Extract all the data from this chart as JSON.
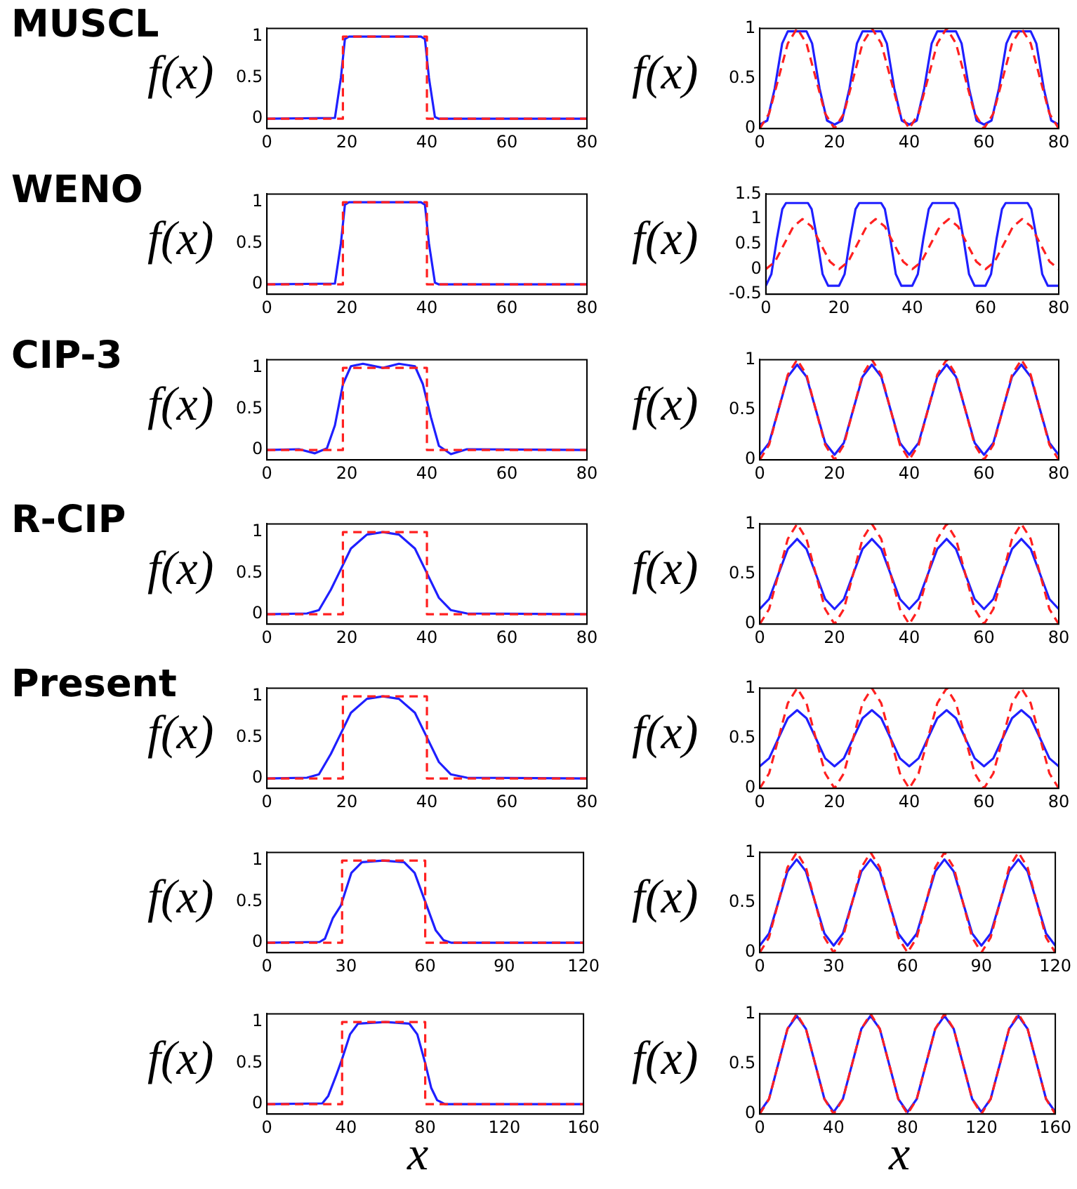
{
  "chart_data": [
    {
      "type": "line",
      "title": "MUSCL",
      "ylabel": "f(x)",
      "xlim": [
        0,
        80
      ],
      "xticks": [
        0,
        20,
        40,
        60,
        80
      ],
      "ylim": [
        -0.12,
        1.1
      ],
      "yticks": [
        0,
        0.5,
        1
      ],
      "series": [
        {
          "color": "#1f1fff",
          "line_style": "solid",
          "x": [
            0,
            17,
            18.5,
            19.5,
            20.5,
            38.5,
            39.5,
            40.5,
            42,
            43,
            80
          ],
          "values": [
            0,
            0.01,
            0.5,
            0.97,
            1,
            1,
            0.97,
            0.5,
            0.02,
            0,
            0
          ]
        },
        {
          "color": "#ff2020",
          "line_style": "dashed",
          "x": [
            0,
            19,
            19,
            40,
            40,
            80
          ],
          "values": [
            0,
            0,
            1,
            1,
            0,
            0
          ]
        }
      ]
    },
    {
      "type": "line",
      "ylabel": "f(x)",
      "xlim": [
        0,
        80
      ],
      "xticks": [
        0,
        20,
        40,
        60,
        80
      ],
      "ylim": [
        0,
        1
      ],
      "yticks": [
        0,
        0.5,
        1
      ],
      "series": [
        {
          "color": "#1f1fff",
          "line_style": "solid",
          "x": [
            0,
            2,
            4,
            6,
            7.5,
            12.5,
            14,
            16,
            18,
            20,
            22,
            24,
            26,
            27.5,
            32.5,
            34,
            36,
            38,
            40,
            42,
            44,
            46,
            47.5,
            52.5,
            54,
            56,
            58,
            60,
            62,
            64,
            66,
            67.5,
            72.5,
            74,
            76,
            78,
            80
          ],
          "values": [
            0.04,
            0.08,
            0.4,
            0.85,
            0.97,
            0.97,
            0.85,
            0.4,
            0.08,
            0.04,
            0.08,
            0.4,
            0.85,
            0.97,
            0.97,
            0.85,
            0.4,
            0.08,
            0.04,
            0.08,
            0.4,
            0.85,
            0.97,
            0.97,
            0.85,
            0.4,
            0.08,
            0.04,
            0.08,
            0.4,
            0.85,
            0.97,
            0.97,
            0.85,
            0.4,
            0.08,
            0.04
          ]
        },
        {
          "color": "#ff2020",
          "line_style": "dashed",
          "x": [
            0,
            2.5,
            5,
            7.5,
            10,
            12.5,
            15,
            17.5,
            20,
            22.5,
            25,
            27.5,
            30,
            32.5,
            35,
            37.5,
            40,
            42.5,
            45,
            47.5,
            50,
            52.5,
            55,
            57.5,
            60,
            62.5,
            65,
            67.5,
            70,
            72.5,
            75,
            77.5,
            80
          ],
          "values": [
            0,
            0.15,
            0.5,
            0.85,
            1,
            0.85,
            0.5,
            0.15,
            0,
            0.15,
            0.5,
            0.85,
            1,
            0.85,
            0.5,
            0.15,
            0,
            0.15,
            0.5,
            0.85,
            1,
            0.85,
            0.5,
            0.15,
            0,
            0.15,
            0.5,
            0.85,
            1,
            0.85,
            0.5,
            0.15,
            0
          ]
        }
      ]
    },
    {
      "type": "line",
      "title": "WENO",
      "ylabel": "f(x)",
      "xlim": [
        0,
        80
      ],
      "xticks": [
        0,
        20,
        40,
        60,
        80
      ],
      "ylim": [
        -0.12,
        1.1
      ],
      "yticks": [
        0,
        0.5,
        1
      ],
      "series": [
        {
          "color": "#1f1fff",
          "line_style": "solid",
          "x": [
            0,
            17,
            18.5,
            19.5,
            20.5,
            38.5,
            39.5,
            40.5,
            42,
            43,
            80
          ],
          "values": [
            0,
            0.01,
            0.5,
            0.97,
            1,
            1,
            0.97,
            0.5,
            0.02,
            0,
            0
          ]
        },
        {
          "color": "#ff2020",
          "line_style": "dashed",
          "x": [
            0,
            19,
            19,
            40,
            40,
            80
          ],
          "values": [
            0,
            0,
            1,
            1,
            0,
            0
          ]
        }
      ]
    },
    {
      "type": "line",
      "ylabel": "f(x)",
      "xlim": [
        0,
        80
      ],
      "xticks": [
        0,
        20,
        40,
        60,
        80
      ],
      "ylim": [
        -0.5,
        1.5
      ],
      "yticks": [
        -0.5,
        0,
        0.5,
        1,
        1.5
      ],
      "series": [
        {
          "color": "#1f1fff",
          "line_style": "solid",
          "x": [
            0,
            1.5,
            3,
            4.5,
            5.5,
            11.5,
            12.5,
            14,
            15.5,
            17,
            20,
            21.5,
            23,
            24.5,
            25.5,
            31.5,
            32.5,
            34,
            35.5,
            37,
            40,
            41.5,
            43,
            44.5,
            45.5,
            51.5,
            52.5,
            54,
            55.5,
            57,
            60,
            61.5,
            63,
            64.5,
            65.5,
            71.5,
            72.5,
            74,
            75.5,
            77,
            80
          ],
          "values": [
            -0.33,
            -0.1,
            0.6,
            1.2,
            1.32,
            1.32,
            1.2,
            0.6,
            -0.1,
            -0.33,
            -0.33,
            -0.1,
            0.6,
            1.2,
            1.32,
            1.32,
            1.2,
            0.6,
            -0.1,
            -0.33,
            -0.33,
            -0.1,
            0.6,
            1.2,
            1.32,
            1.32,
            1.2,
            0.6,
            -0.1,
            -0.33,
            -0.33,
            -0.1,
            0.6,
            1.2,
            1.32,
            1.32,
            1.2,
            0.6,
            -0.1,
            -0.33,
            -0.33
          ]
        },
        {
          "color": "#ff2020",
          "line_style": "dashed",
          "x": [
            0,
            2.5,
            5,
            7.5,
            10,
            12.5,
            15,
            17.5,
            20,
            22.5,
            25,
            27.5,
            30,
            32.5,
            35,
            37.5,
            40,
            42.5,
            45,
            47.5,
            50,
            52.5,
            55,
            57.5,
            60,
            62.5,
            65,
            67.5,
            70,
            72.5,
            75,
            77.5,
            80
          ],
          "values": [
            0,
            0.15,
            0.5,
            0.85,
            1,
            0.85,
            0.5,
            0.15,
            0,
            0.15,
            0.5,
            0.85,
            1,
            0.85,
            0.5,
            0.15,
            0,
            0.15,
            0.5,
            0.85,
            1,
            0.85,
            0.5,
            0.15,
            0,
            0.15,
            0.5,
            0.85,
            1,
            0.85,
            0.5,
            0.15,
            0
          ]
        }
      ]
    },
    {
      "type": "line",
      "title": "CIP-3",
      "ylabel": "f(x)",
      "xlim": [
        0,
        80
      ],
      "xticks": [
        0,
        20,
        40,
        60,
        80
      ],
      "ylim": [
        -0.12,
        1.1
      ],
      "yticks": [
        0,
        0.5,
        1
      ],
      "series": [
        {
          "color": "#1f1fff",
          "line_style": "solid",
          "x": [
            0,
            8,
            12,
            15,
            17,
            19,
            21,
            24,
            29,
            33,
            37,
            39,
            41,
            43,
            46,
            50,
            80
          ],
          "values": [
            0,
            0.01,
            -0.04,
            0.02,
            0.3,
            0.8,
            1.02,
            1.05,
            1,
            1.05,
            1.02,
            0.8,
            0.4,
            0.05,
            -0.05,
            0.01,
            0
          ]
        },
        {
          "color": "#ff2020",
          "line_style": "dashed",
          "x": [
            0,
            19,
            19,
            40,
            40,
            80
          ],
          "values": [
            0,
            0,
            1,
            1,
            0,
            0
          ]
        }
      ]
    },
    {
      "type": "line",
      "ylabel": "f(x)",
      "xlim": [
        0,
        80
      ],
      "xticks": [
        0,
        20,
        40,
        60,
        80
      ],
      "ylim": [
        0,
        1
      ],
      "yticks": [
        0,
        0.5,
        1
      ],
      "x": [
        0,
        2.5,
        5,
        7.5,
        10,
        12.5,
        15,
        17.5,
        20,
        22.5,
        25,
        27.5,
        30,
        32.5,
        35,
        37.5,
        40,
        42.5,
        45,
        47.5,
        50,
        52.5,
        55,
        57.5,
        60,
        62.5,
        65,
        67.5,
        70,
        72.5,
        75,
        77.5,
        80
      ],
      "series": [
        {
          "color": "#1f1fff",
          "line_style": "solid",
          "values": [
            0.05,
            0.17,
            0.5,
            0.83,
            0.95,
            0.83,
            0.5,
            0.17,
            0.05,
            0.17,
            0.5,
            0.83,
            0.95,
            0.83,
            0.5,
            0.17,
            0.05,
            0.17,
            0.5,
            0.83,
            0.95,
            0.83,
            0.5,
            0.17,
            0.05,
            0.17,
            0.5,
            0.83,
            0.95,
            0.83,
            0.5,
            0.17,
            0.05
          ]
        },
        {
          "color": "#ff2020",
          "line_style": "dashed",
          "values": [
            0,
            0.15,
            0.5,
            0.85,
            1,
            0.85,
            0.5,
            0.15,
            0,
            0.15,
            0.5,
            0.85,
            1,
            0.85,
            0.5,
            0.15,
            0,
            0.15,
            0.5,
            0.85,
            1,
            0.85,
            0.5,
            0.15,
            0,
            0.15,
            0.5,
            0.85,
            1,
            0.85,
            0.5,
            0.15,
            0
          ]
        }
      ]
    },
    {
      "type": "line",
      "title": "R-CIP",
      "ylabel": "f(x)",
      "xlim": [
        0,
        80
      ],
      "xticks": [
        0,
        20,
        40,
        60,
        80
      ],
      "ylim": [
        -0.12,
        1.1
      ],
      "yticks": [
        0,
        0.5,
        1
      ],
      "series": [
        {
          "color": "#1f1fff",
          "line_style": "solid",
          "x": [
            0,
            10,
            13,
            16,
            18,
            21,
            25,
            29,
            33,
            37,
            40,
            43,
            46,
            50,
            80
          ],
          "values": [
            0,
            0.01,
            0.05,
            0.3,
            0.5,
            0.8,
            0.97,
            1,
            0.97,
            0.8,
            0.5,
            0.2,
            0.05,
            0.01,
            0
          ]
        },
        {
          "color": "#ff2020",
          "line_style": "dashed",
          "x": [
            0,
            19,
            19,
            40,
            40,
            80
          ],
          "values": [
            0,
            0,
            1,
            1,
            0,
            0
          ]
        }
      ]
    },
    {
      "type": "line",
      "ylabel": "f(x)",
      "xlim": [
        0,
        80
      ],
      "xticks": [
        0,
        20,
        40,
        60,
        80
      ],
      "ylim": [
        0,
        1
      ],
      "yticks": [
        0,
        0.5,
        1
      ],
      "x": [
        0,
        2.5,
        5,
        7.5,
        10,
        12.5,
        15,
        17.5,
        20,
        22.5,
        25,
        27.5,
        30,
        32.5,
        35,
        37.5,
        40,
        42.5,
        45,
        47.5,
        50,
        52.5,
        55,
        57.5,
        60,
        62.5,
        65,
        67.5,
        70,
        72.5,
        75,
        77.5,
        80
      ],
      "series": [
        {
          "color": "#1f1fff",
          "line_style": "solid",
          "values": [
            0.15,
            0.25,
            0.5,
            0.75,
            0.85,
            0.75,
            0.5,
            0.25,
            0.15,
            0.25,
            0.5,
            0.75,
            0.85,
            0.75,
            0.5,
            0.25,
            0.15,
            0.25,
            0.5,
            0.75,
            0.85,
            0.75,
            0.5,
            0.25,
            0.15,
            0.25,
            0.5,
            0.75,
            0.85,
            0.75,
            0.5,
            0.25,
            0.15
          ]
        },
        {
          "color": "#ff2020",
          "line_style": "dashed",
          "values": [
            0,
            0.15,
            0.5,
            0.85,
            1,
            0.85,
            0.5,
            0.15,
            0,
            0.15,
            0.5,
            0.85,
            1,
            0.85,
            0.5,
            0.15,
            0,
            0.15,
            0.5,
            0.85,
            1,
            0.85,
            0.5,
            0.15,
            0,
            0.15,
            0.5,
            0.85,
            1,
            0.85,
            0.5,
            0.15,
            0
          ]
        }
      ]
    },
    {
      "type": "line",
      "title": "Present",
      "ylabel": "f(x)",
      "xlim": [
        0,
        80
      ],
      "xticks": [
        0,
        20,
        40,
        60,
        80
      ],
      "ylim": [
        -0.12,
        1.1
      ],
      "yticks": [
        0,
        0.5,
        1
      ],
      "series": [
        {
          "color": "#1f1fff",
          "line_style": "solid",
          "x": [
            0,
            10,
            13,
            16,
            18,
            21,
            25,
            29,
            33,
            37,
            40,
            43,
            46,
            50,
            80
          ],
          "values": [
            0,
            0.01,
            0.05,
            0.3,
            0.5,
            0.8,
            0.97,
            1,
            0.97,
            0.8,
            0.5,
            0.2,
            0.05,
            0.01,
            0
          ]
        },
        {
          "color": "#ff2020",
          "line_style": "dashed",
          "x": [
            0,
            19,
            19,
            40,
            40,
            80
          ],
          "values": [
            0,
            0,
            1,
            1,
            0,
            0
          ]
        }
      ]
    },
    {
      "type": "line",
      "ylabel": "f(x)",
      "xlim": [
        0,
        80
      ],
      "xticks": [
        0,
        20,
        40,
        60,
        80
      ],
      "ylim": [
        0,
        1
      ],
      "yticks": [
        0,
        0.5,
        1
      ],
      "x": [
        0,
        2.5,
        5,
        7.5,
        10,
        12.5,
        15,
        17.5,
        20,
        22.5,
        25,
        27.5,
        30,
        32.5,
        35,
        37.5,
        40,
        42.5,
        45,
        47.5,
        50,
        52.5,
        55,
        57.5,
        60,
        62.5,
        65,
        67.5,
        70,
        72.5,
        75,
        77.5,
        80
      ],
      "series": [
        {
          "color": "#1f1fff",
          "line_style": "solid",
          "values": [
            0.22,
            0.3,
            0.5,
            0.7,
            0.78,
            0.7,
            0.5,
            0.3,
            0.22,
            0.3,
            0.5,
            0.7,
            0.78,
            0.7,
            0.5,
            0.3,
            0.22,
            0.3,
            0.5,
            0.7,
            0.78,
            0.7,
            0.5,
            0.3,
            0.22,
            0.3,
            0.5,
            0.7,
            0.78,
            0.7,
            0.5,
            0.3,
            0.22
          ]
        },
        {
          "color": "#ff2020",
          "line_style": "dashed",
          "values": [
            0,
            0.15,
            0.5,
            0.85,
            1,
            0.85,
            0.5,
            0.15,
            0,
            0.15,
            0.5,
            0.85,
            1,
            0.85,
            0.5,
            0.15,
            0,
            0.15,
            0.5,
            0.85,
            1,
            0.85,
            0.5,
            0.15,
            0,
            0.15,
            0.5,
            0.85,
            1,
            0.85,
            0.5,
            0.15,
            0
          ]
        }
      ]
    },
    {
      "type": "line",
      "ylabel": "f(x)",
      "xlim": [
        0,
        120
      ],
      "xticks": [
        0,
        30,
        60,
        90,
        120
      ],
      "ylim": [
        -0.12,
        1.1
      ],
      "yticks": [
        0,
        0.5,
        1
      ],
      "series": [
        {
          "color": "#1f1fff",
          "line_style": "solid",
          "x": [
            0,
            20,
            22,
            25,
            28,
            32,
            36,
            44,
            52,
            56,
            60,
            64,
            67,
            70,
            120
          ],
          "values": [
            0,
            0.01,
            0.05,
            0.3,
            0.45,
            0.85,
            0.98,
            1,
            0.98,
            0.85,
            0.5,
            0.15,
            0.03,
            0,
            0
          ]
        },
        {
          "color": "#ff2020",
          "line_style": "dashed",
          "x": [
            0,
            28.5,
            28.5,
            60,
            60,
            120
          ],
          "values": [
            0,
            0,
            1,
            1,
            0,
            0
          ]
        }
      ]
    },
    {
      "type": "line",
      "ylabel": "f(x)",
      "xlim": [
        0,
        120
      ],
      "xticks": [
        0,
        30,
        60,
        90,
        120
      ],
      "ylim": [
        0,
        1
      ],
      "yticks": [
        0,
        0.5,
        1
      ],
      "x": [
        0,
        3.75,
        7.5,
        11.25,
        15,
        18.75,
        22.5,
        26.25,
        30,
        33.75,
        37.5,
        41.25,
        45,
        48.75,
        52.5,
        56.25,
        60,
        63.75,
        67.5,
        71.25,
        75,
        78.75,
        82.5,
        86.25,
        90,
        93.75,
        97.5,
        101.25,
        105,
        108.75,
        112.5,
        116.25,
        120
      ],
      "series": [
        {
          "color": "#1f1fff",
          "line_style": "solid",
          "values": [
            0.07,
            0.19,
            0.5,
            0.81,
            0.93,
            0.81,
            0.5,
            0.19,
            0.07,
            0.19,
            0.5,
            0.81,
            0.93,
            0.81,
            0.5,
            0.19,
            0.07,
            0.19,
            0.5,
            0.81,
            0.93,
            0.81,
            0.5,
            0.19,
            0.07,
            0.19,
            0.5,
            0.81,
            0.93,
            0.81,
            0.5,
            0.19,
            0.07
          ]
        },
        {
          "color": "#ff2020",
          "line_style": "dashed",
          "values": [
            0,
            0.15,
            0.5,
            0.85,
            1,
            0.85,
            0.5,
            0.15,
            0,
            0.15,
            0.5,
            0.85,
            1,
            0.85,
            0.5,
            0.15,
            0,
            0.15,
            0.5,
            0.85,
            1,
            0.85,
            0.5,
            0.15,
            0,
            0.15,
            0.5,
            0.85,
            1,
            0.85,
            0.5,
            0.15,
            0
          ]
        }
      ]
    },
    {
      "type": "line",
      "ylabel": "f(x)",
      "xlabel": "x",
      "xlim": [
        0,
        160
      ],
      "xticks": [
        0,
        40,
        80,
        120,
        160
      ],
      "ylim": [
        -0.12,
        1.1
      ],
      "yticks": [
        0,
        0.5,
        1
      ],
      "series": [
        {
          "color": "#1f1fff",
          "line_style": "solid",
          "x": [
            0,
            28,
            31,
            35,
            38,
            42,
            46,
            60,
            72,
            76,
            80,
            83,
            86,
            90,
            160
          ],
          "values": [
            0,
            0.01,
            0.1,
            0.35,
            0.55,
            0.85,
            0.98,
            1,
            0.98,
            0.85,
            0.5,
            0.2,
            0.05,
            0,
            0
          ]
        },
        {
          "color": "#ff2020",
          "line_style": "dashed",
          "x": [
            0,
            38,
            38,
            80,
            80,
            160
          ],
          "values": [
            0,
            0,
            1,
            1,
            0,
            0
          ]
        }
      ]
    },
    {
      "type": "line",
      "ylabel": "f(x)",
      "xlabel": "x",
      "xlim": [
        0,
        160
      ],
      "xticks": [
        0,
        40,
        80,
        120,
        160
      ],
      "ylim": [
        0,
        1
      ],
      "yticks": [
        0,
        0.5,
        1
      ],
      "x": [
        0,
        5,
        10,
        15,
        20,
        25,
        30,
        35,
        40,
        45,
        50,
        55,
        60,
        65,
        70,
        75,
        80,
        85,
        90,
        95,
        100,
        105,
        110,
        115,
        120,
        125,
        130,
        135,
        140,
        145,
        150,
        155,
        160
      ],
      "series": [
        {
          "color": "#1f1fff",
          "line_style": "solid",
          "values": [
            0.02,
            0.15,
            0.5,
            0.85,
            0.98,
            0.85,
            0.5,
            0.15,
            0.02,
            0.15,
            0.5,
            0.85,
            0.98,
            0.85,
            0.5,
            0.15,
            0.02,
            0.15,
            0.5,
            0.85,
            0.98,
            0.85,
            0.5,
            0.15,
            0.02,
            0.15,
            0.5,
            0.85,
            0.98,
            0.85,
            0.5,
            0.15,
            0.02
          ]
        },
        {
          "color": "#ff2020",
          "line_style": "dashed",
          "values": [
            0,
            0.15,
            0.5,
            0.85,
            1,
            0.85,
            0.5,
            0.15,
            0,
            0.15,
            0.5,
            0.85,
            1,
            0.85,
            0.5,
            0.15,
            0,
            0.15,
            0.5,
            0.85,
            1,
            0.85,
            0.5,
            0.15,
            0,
            0.15,
            0.5,
            0.85,
            1,
            0.85,
            0.5,
            0.15,
            0
          ]
        }
      ]
    }
  ]
}
